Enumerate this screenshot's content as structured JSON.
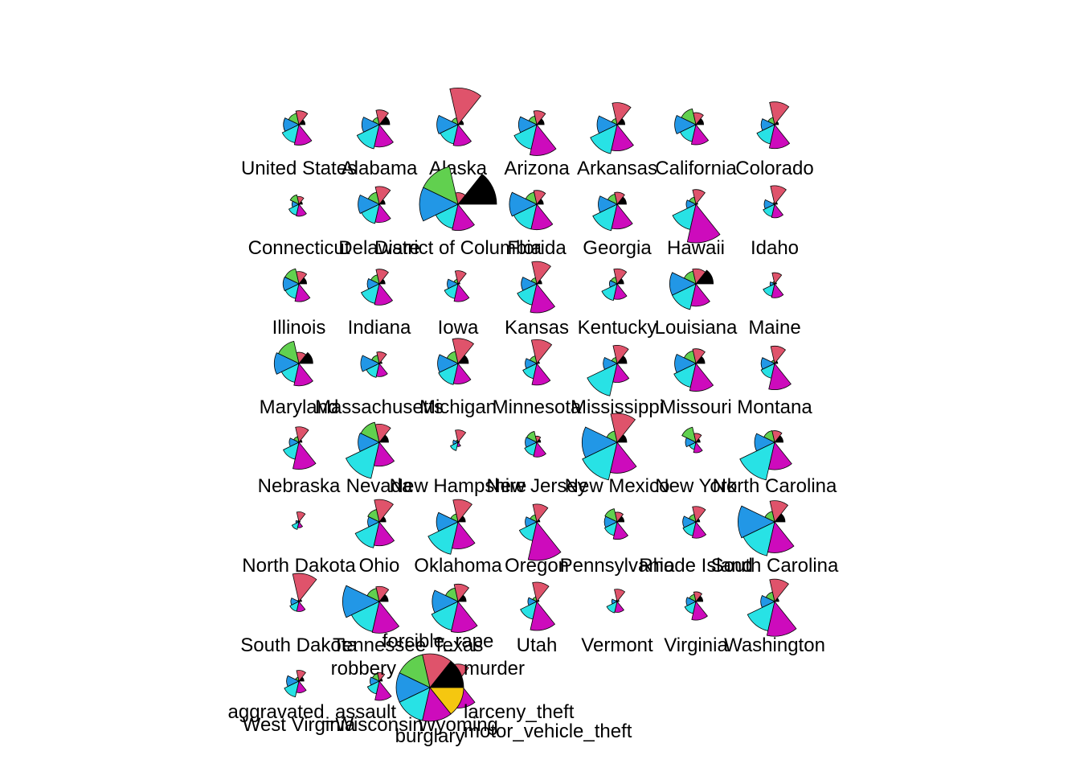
{
  "chart_data": {
    "type": "star-segment",
    "scale_note": "segment radius is proportional to the crime rate relative to the maximum across all states",
    "variables": [
      "murder",
      "rape",
      "robbery",
      "aggravated_assault",
      "burglary",
      "larceny_theft",
      "motor_vehicle_theft"
    ],
    "colors": [
      "#000000",
      "#DF536B",
      "#61D04F",
      "#2297E6",
      "#28E2E5",
      "#CD0BBC",
      "#F5C710"
    ],
    "legend": {
      "position": "bottom-left",
      "labels": [
        "murder",
        "forcible_rape",
        "robbery",
        "aggravated_assault",
        "burglary",
        "larceny_theft",
        "motor_vehicle_theft"
      ]
    },
    "states": [
      {
        "name": "United States",
        "values": [
          0.16,
          0.36,
          0.3,
          0.4,
          0.48,
          0.53,
          0.0
        ]
      },
      {
        "name": "Alabama",
        "values": [
          0.27,
          0.38,
          0.19,
          0.45,
          0.64,
          0.58,
          0.0
        ]
      },
      {
        "name": "Alaska",
        "values": [
          0.14,
          0.95,
          0.18,
          0.55,
          0.51,
          0.55,
          0.0
        ]
      },
      {
        "name": "Arizona",
        "values": [
          0.19,
          0.36,
          0.23,
          0.47,
          0.65,
          0.8,
          0.0
        ]
      },
      {
        "name": "Arkansas",
        "values": [
          0.2,
          0.57,
          0.16,
          0.52,
          0.77,
          0.68,
          0.0
        ]
      },
      {
        "name": "California",
        "values": [
          0.2,
          0.31,
          0.42,
          0.55,
          0.45,
          0.52,
          0.0
        ]
      },
      {
        "name": "Colorado",
        "values": [
          0.1,
          0.59,
          0.19,
          0.35,
          0.51,
          0.62,
          0.0
        ]
      },
      {
        "name": "Connecticut",
        "values": [
          0.09,
          0.2,
          0.25,
          0.18,
          0.29,
          0.31,
          0.0
        ]
      },
      {
        "name": "Delaware",
        "values": [
          0.15,
          0.46,
          0.32,
          0.55,
          0.51,
          0.47,
          0.0
        ]
      },
      {
        "name": "District of Columbia",
        "values": [
          1.0,
          0.3,
          1.0,
          1.0,
          0.64,
          0.68,
          0.0
        ]
      },
      {
        "name": "Florida",
        "values": [
          0.17,
          0.36,
          0.32,
          0.71,
          0.66,
          0.66,
          0.0
        ]
      },
      {
        "name": "Georgia",
        "values": [
          0.24,
          0.31,
          0.27,
          0.49,
          0.7,
          0.64,
          0.0
        ]
      },
      {
        "name": "Hawaii",
        "values": [
          0.05,
          0.38,
          0.19,
          0.25,
          0.67,
          1.0,
          0.0
        ]
      },
      {
        "name": "Idaho",
        "values": [
          0.07,
          0.48,
          0.05,
          0.27,
          0.33,
          0.35,
          0.0
        ]
      },
      {
        "name": "Illinois",
        "values": [
          0.2,
          0.32,
          0.4,
          0.41,
          0.39,
          0.46,
          0.0
        ]
      },
      {
        "name": "Indiana",
        "values": [
          0.15,
          0.38,
          0.24,
          0.31,
          0.52,
          0.55,
          0.0
        ]
      },
      {
        "name": "Iowa",
        "values": [
          0.05,
          0.34,
          0.12,
          0.28,
          0.39,
          0.46,
          0.0
        ]
      },
      {
        "name": "Kansas",
        "values": [
          0.13,
          0.58,
          0.16,
          0.4,
          0.56,
          0.75,
          0.0
        ]
      },
      {
        "name": "Kentucky",
        "values": [
          0.17,
          0.39,
          0.18,
          0.2,
          0.44,
          0.4,
          0.0
        ]
      },
      {
        "name": "Louisiana",
        "values": [
          0.45,
          0.39,
          0.34,
          0.68,
          0.68,
          0.58,
          0.0
        ]
      },
      {
        "name": "Maine",
        "values": [
          0.05,
          0.29,
          0.06,
          0.12,
          0.33,
          0.36,
          0.0
        ]
      },
      {
        "name": "Maryland",
        "values": [
          0.36,
          0.29,
          0.59,
          0.64,
          0.5,
          0.58,
          0.0
        ]
      },
      {
        "name": "Massachusetts",
        "values": [
          0.07,
          0.3,
          0.22,
          0.48,
          0.37,
          0.34,
          0.0
        ]
      },
      {
        "name": "Michigan",
        "values": [
          0.27,
          0.65,
          0.32,
          0.53,
          0.56,
          0.53,
          0.0
        ]
      },
      {
        "name": "Minnesota",
        "values": [
          0.07,
          0.62,
          0.2,
          0.3,
          0.4,
          0.56,
          0.0
        ]
      },
      {
        "name": "Mississippi",
        "values": [
          0.25,
          0.47,
          0.16,
          0.36,
          0.86,
          0.49,
          0.0
        ]
      },
      {
        "name": "Missouri",
        "values": [
          0.23,
          0.38,
          0.34,
          0.55,
          0.63,
          0.72,
          0.0
        ]
      },
      {
        "name": "Montana",
        "values": [
          0.08,
          0.45,
          0.09,
          0.35,
          0.39,
          0.68,
          0.0
        ]
      },
      {
        "name": "Nebraska",
        "values": [
          0.08,
          0.4,
          0.15,
          0.25,
          0.45,
          0.7,
          0.0
        ]
      },
      {
        "name": "Nevada",
        "values": [
          0.24,
          0.47,
          0.53,
          0.55,
          0.96,
          0.62,
          0.0
        ]
      },
      {
        "name": "New Hampshire",
        "values": [
          0.04,
          0.32,
          0.06,
          0.13,
          0.22,
          0.11,
          0.0
        ]
      },
      {
        "name": "New Jersey",
        "values": [
          0.1,
          0.16,
          0.29,
          0.3,
          0.35,
          0.38,
          0.0
        ]
      },
      {
        "name": "New Mexico",
        "values": [
          0.25,
          0.75,
          0.3,
          0.91,
          1.0,
          0.8,
          0.0
        ]
      },
      {
        "name": "New York",
        "values": [
          0.11,
          0.23,
          0.4,
          0.27,
          0.19,
          0.27,
          0.0
        ]
      },
      {
        "name": "North Carolina",
        "values": [
          0.22,
          0.3,
          0.31,
          0.52,
          1.0,
          0.71,
          0.0
        ]
      },
      {
        "name": "North Dakota",
        "values": [
          0.03,
          0.26,
          0.04,
          0.08,
          0.2,
          0.15,
          0.0
        ]
      },
      {
        "name": "Ohio",
        "values": [
          0.17,
          0.58,
          0.33,
          0.3,
          0.69,
          0.62,
          0.0
        ]
      },
      {
        "name": "Oklahoma",
        "values": [
          0.19,
          0.58,
          0.21,
          0.56,
          0.86,
          0.7,
          0.0
        ]
      },
      {
        "name": "Oregon",
        "values": [
          0.08,
          0.46,
          0.19,
          0.3,
          0.5,
          1.0,
          0.0
        ]
      },
      {
        "name": "Pennsylvania",
        "values": [
          0.18,
          0.25,
          0.35,
          0.33,
          0.36,
          0.45,
          0.0
        ]
      },
      {
        "name": "Rhode Island",
        "values": [
          0.1,
          0.4,
          0.2,
          0.34,
          0.37,
          0.42,
          0.0
        ]
      },
      {
        "name": "South Carolina",
        "values": [
          0.27,
          0.55,
          0.28,
          0.95,
          0.9,
          0.8,
          0.0
        ]
      },
      {
        "name": "South Dakota",
        "values": [
          0.07,
          0.73,
          0.04,
          0.21,
          0.26,
          0.26,
          0.0
        ]
      },
      {
        "name": "Tennessee",
        "values": [
          0.23,
          0.39,
          0.35,
          0.95,
          0.8,
          0.82,
          0.0
        ]
      },
      {
        "name": "Texas",
        "values": [
          0.21,
          0.45,
          0.36,
          0.67,
          0.76,
          0.8,
          0.0
        ]
      },
      {
        "name": "Utah",
        "values": [
          0.06,
          0.5,
          0.12,
          0.23,
          0.47,
          0.75,
          0.0
        ]
      },
      {
        "name": "Vermont",
        "values": [
          0.05,
          0.32,
          0.04,
          0.14,
          0.3,
          0.28,
          0.0
        ]
      },
      {
        "name": "Virginia",
        "values": [
          0.18,
          0.25,
          0.19,
          0.25,
          0.32,
          0.48,
          0.0
        ]
      },
      {
        "name": "Washington",
        "values": [
          0.11,
          0.58,
          0.25,
          0.36,
          0.78,
          0.9,
          0.0
        ]
      },
      {
        "name": "West Virginia",
        "values": [
          0.13,
          0.28,
          0.1,
          0.32,
          0.42,
          0.3,
          0.0
        ]
      },
      {
        "name": "Wisconsin",
        "values": [
          0.08,
          0.22,
          0.2,
          0.24,
          0.34,
          0.5,
          0.0
        ]
      },
      {
        "name": "Wyoming",
        "values": [
          0.08,
          0.44,
          0.06,
          0.28,
          0.36,
          0.7,
          0.0
        ]
      }
    ]
  }
}
